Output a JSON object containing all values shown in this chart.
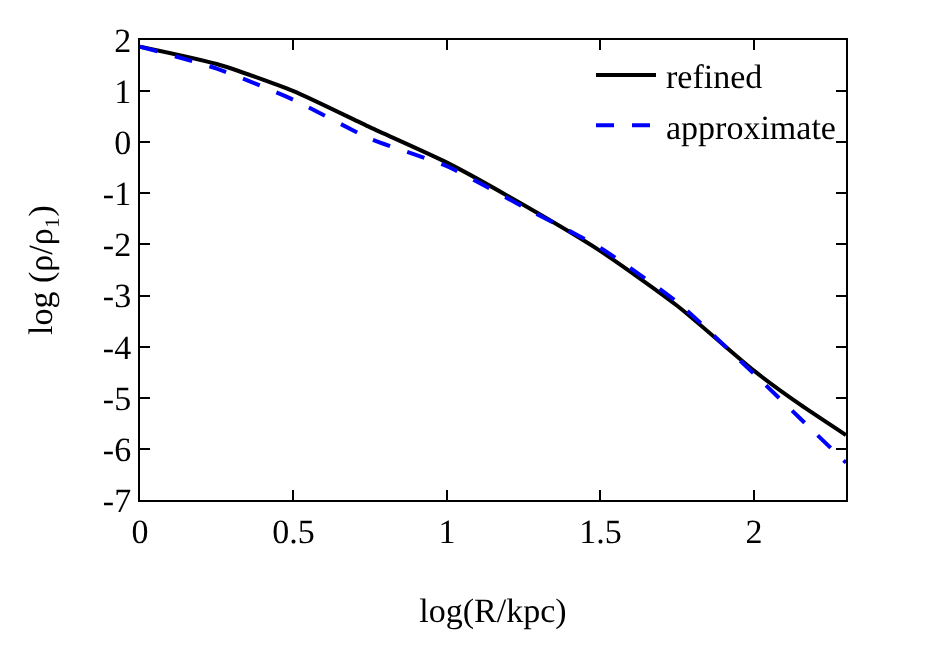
{
  "chart_data": {
    "type": "line",
    "xlabel": "log(R/kpc)",
    "ylabel": "log (ρ/ρ₁)",
    "x": [
      0,
      0.25,
      0.5,
      0.75,
      1,
      1.25,
      1.5,
      1.75,
      2,
      2.15,
      2.3
    ],
    "series": [
      {
        "name": "refined",
        "color": "#000000",
        "line_style": "solid",
        "values": [
          1.87,
          1.53,
          1.0,
          0.29,
          -0.4,
          -1.23,
          -2.13,
          -3.2,
          -4.47,
          -5.13,
          -5.73
        ]
      },
      {
        "name": "approximate",
        "color": "#0000ff",
        "line_style": "dashed",
        "values": [
          1.87,
          1.44,
          0.83,
          0.07,
          -0.47,
          -1.27,
          -2.07,
          -3.13,
          -4.53,
          -5.4,
          -6.27
        ]
      }
    ],
    "xlim": [
      0,
      2.3
    ],
    "xticks": [
      0,
      0.5,
      1,
      1.5,
      2
    ],
    "ylim": [
      -7,
      2
    ],
    "yticks": [
      -7,
      -6,
      -5,
      -4,
      -3,
      -2,
      -1,
      0,
      1,
      2
    ],
    "grid": false,
    "legend": "top right",
    "marker": "none"
  }
}
